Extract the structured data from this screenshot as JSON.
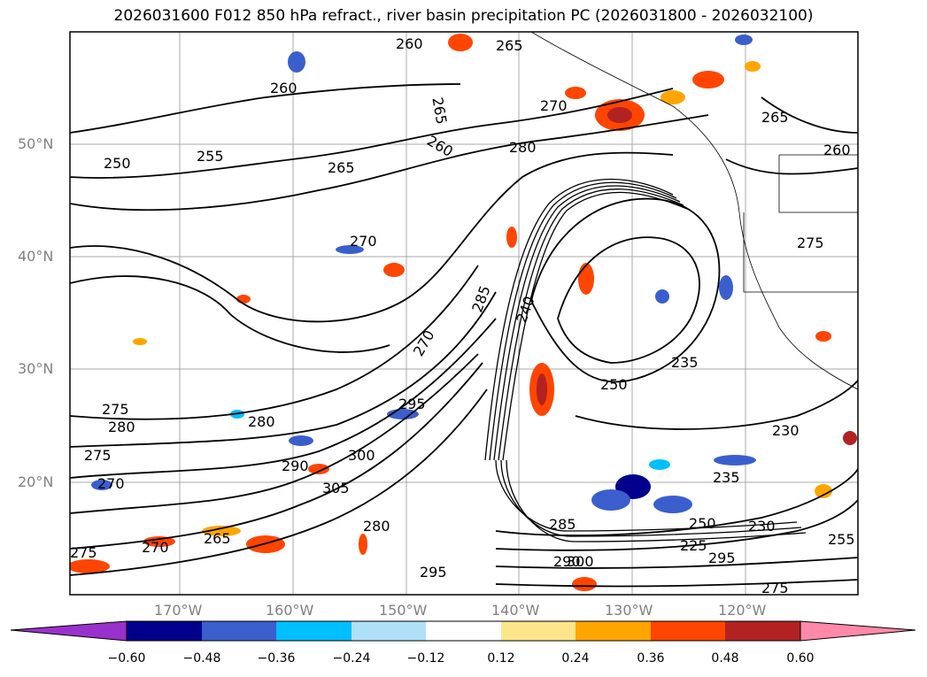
{
  "title": "2026031600 F012 850 hPa refract., river basin precipitation PC (2026031800 - 2026032100)",
  "lat_labels": [
    "50°N",
    "40°N",
    "30°N",
    "20°N"
  ],
  "lon_labels": [
    "170°W",
    "160°W",
    "150°W",
    "140°W",
    "130°W",
    "120°W"
  ],
  "contour_labels": [
    "260",
    "265",
    "260",
    "265",
    "270",
    "260",
    "280",
    "265",
    "250",
    "255",
    "265",
    "260",
    "270",
    "275",
    "280",
    "275",
    "270",
    "285",
    "240",
    "235",
    "250",
    "230",
    "275",
    "280",
    "290",
    "300",
    "305",
    "295",
    "265",
    "270",
    "275",
    "280",
    "285",
    "290",
    "295",
    "300",
    "250",
    "235",
    "230",
    "225",
    "255",
    "295",
    "275",
    "270"
  ],
  "colorbar": {
    "ticks": [
      "−0.60",
      "−0.48",
      "−0.36",
      "−0.24",
      "−0.12",
      "0.12",
      "0.24",
      "0.36",
      "0.48",
      "0.60"
    ],
    "colors": [
      "#9932cc",
      "#00008b",
      "#3a5fcd",
      "#00bfff",
      "#b0e0f8",
      "#ffffff",
      "#fde68a",
      "#ffa500",
      "#ff4500",
      "#b22222",
      "#ff89a9"
    ]
  }
}
